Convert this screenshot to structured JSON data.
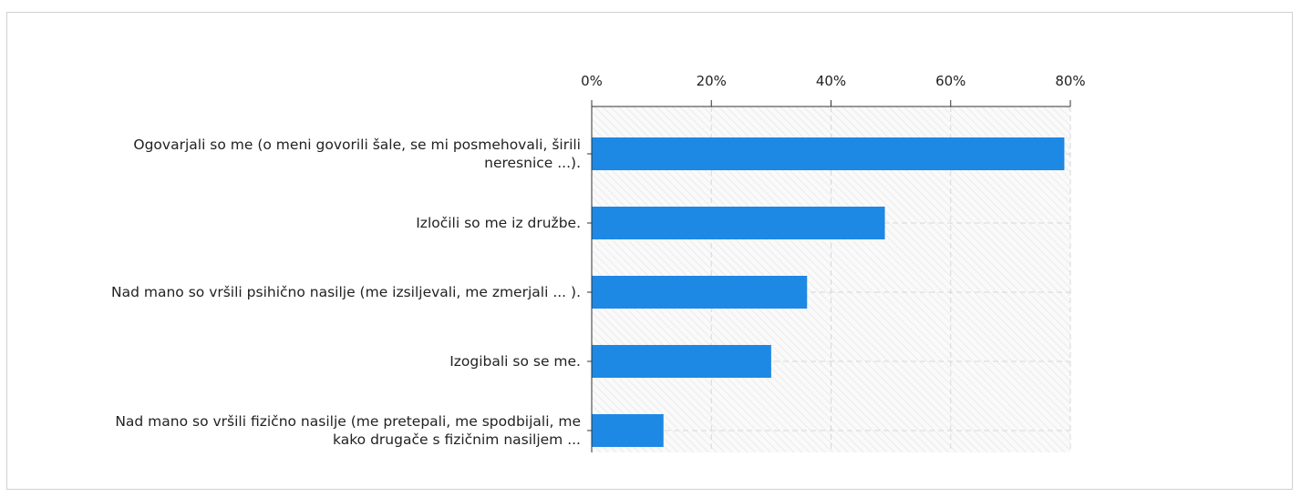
{
  "chart_data": {
    "type": "bar",
    "orientation": "horizontal",
    "categories": [
      "Ogovarjali so me (o meni govorili šale, se mi posmehovali, širili neresnice ...).",
      "Izločili so me iz družbe.",
      "Nad mano so vršili psihično nasilje (me izsiljevali, me zmerjali ... ).",
      "Izogibali so se me.",
      "Nad mano so vršili fizično nasilje (me pretepali, me spodbijali, me kako drugače s fizičnim nasiljem ..."
    ],
    "values": [
      79,
      49,
      36,
      30,
      12
    ],
    "color": "#1e88e5",
    "xlim": [
      0,
      80
    ],
    "xticks": [
      {
        "value": 0,
        "label": "0%"
      },
      {
        "value": 20,
        "label": "20%"
      },
      {
        "value": 40,
        "label": "40%"
      },
      {
        "value": 60,
        "label": "60%"
      },
      {
        "value": 80,
        "label": "80%"
      }
    ],
    "grid": true
  }
}
